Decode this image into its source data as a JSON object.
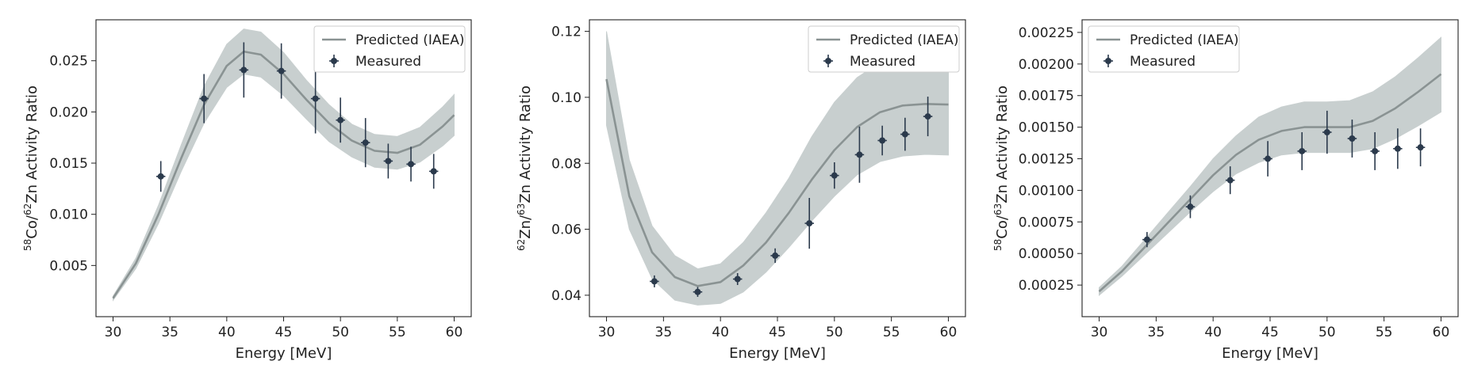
{
  "chart_data": [
    {
      "type": "line",
      "xlabel": "Energy [MeV]",
      "ylabel": {
        "parts": [
          [
            "58",
            true
          ],
          [
            "Co/",
            false
          ],
          [
            "62",
            true
          ],
          [
            "Zn Activity Ratio",
            false
          ]
        ]
      },
      "xlim": [
        28.5,
        61.5
      ],
      "ylim": [
        0.0,
        0.029
      ],
      "xticks": [
        30,
        35,
        40,
        45,
        50,
        55,
        60
      ],
      "yticks": [
        0.005,
        0.01,
        0.015,
        0.02,
        0.025
      ],
      "ytick_decimals": 3,
      "legend_position": "top-right",
      "legend": {
        "predicted": "Predicted (IAEA)",
        "measured": "Measured"
      },
      "grid": false,
      "predicted": {
        "x": [
          30,
          32,
          34,
          36,
          38,
          40,
          41.5,
          43,
          45,
          47,
          49,
          51,
          53,
          55,
          57,
          59,
          60
        ],
        "y": [
          0.0018,
          0.0052,
          0.01,
          0.0155,
          0.0207,
          0.0245,
          0.0259,
          0.0256,
          0.0237,
          0.0212,
          0.0189,
          0.0172,
          0.0162,
          0.016,
          0.0168,
          0.0186,
          0.0197
        ],
        "lower": [
          0.0016,
          0.0047,
          0.0091,
          0.0142,
          0.0189,
          0.0224,
          0.0237,
          0.0234,
          0.0216,
          0.0193,
          0.0171,
          0.0156,
          0.0146,
          0.0144,
          0.0151,
          0.0167,
          0.0177
        ],
        "upper": [
          0.002,
          0.0057,
          0.0109,
          0.0168,
          0.0225,
          0.0266,
          0.0281,
          0.0278,
          0.0258,
          0.0231,
          0.0207,
          0.0188,
          0.0178,
          0.0176,
          0.0185,
          0.0205,
          0.0217
        ]
      },
      "measured": [
        {
          "x": 34.2,
          "y": 0.0137,
          "yerr": 0.0015,
          "xerr": 0.4
        },
        {
          "x": 38.0,
          "y": 0.0213,
          "yerr": 0.0024,
          "xerr": 0.4
        },
        {
          "x": 41.5,
          "y": 0.0241,
          "yerr": 0.0027,
          "xerr": 0.4
        },
        {
          "x": 44.8,
          "y": 0.024,
          "yerr": 0.0027,
          "xerr": 0.4
        },
        {
          "x": 47.8,
          "y": 0.0213,
          "yerr": 0.0034,
          "xerr": 0.4
        },
        {
          "x": 50.0,
          "y": 0.0192,
          "yerr": 0.0022,
          "xerr": 0.4
        },
        {
          "x": 52.2,
          "y": 0.017,
          "yerr": 0.0024,
          "xerr": 0.4
        },
        {
          "x": 54.2,
          "y": 0.0152,
          "yerr": 0.0017,
          "xerr": 0.4
        },
        {
          "x": 56.2,
          "y": 0.0149,
          "yerr": 0.0017,
          "xerr": 0.4
        },
        {
          "x": 58.2,
          "y": 0.0142,
          "yerr": 0.0017,
          "xerr": 0.4
        }
      ]
    },
    {
      "type": "line",
      "xlabel": "Energy [MeV]",
      "ylabel": {
        "parts": [
          [
            "62",
            true
          ],
          [
            "Zn/",
            false
          ],
          [
            "63",
            true
          ],
          [
            "Zn Activity Ratio",
            false
          ]
        ]
      },
      "xlim": [
        28.5,
        61.5
      ],
      "ylim": [
        0.0335,
        0.1235
      ],
      "xticks": [
        30,
        35,
        40,
        45,
        50,
        55,
        60
      ],
      "yticks": [
        0.04,
        0.06,
        0.08,
        0.1,
        0.12
      ],
      "ytick_decimals": 2,
      "legend_position": "top-right",
      "legend": {
        "predicted": "Predicted (IAEA)",
        "measured": "Measured"
      },
      "grid": false,
      "predicted": {
        "x": [
          30,
          32,
          34,
          36,
          38,
          40,
          42,
          44,
          46,
          48,
          50,
          52,
          54,
          56,
          58,
          60
        ],
        "y": [
          0.1055,
          0.07,
          0.053,
          0.0455,
          0.0428,
          0.044,
          0.049,
          0.056,
          0.065,
          0.075,
          0.084,
          0.091,
          0.0955,
          0.0975,
          0.098,
          0.0978
        ],
        "lower": [
          0.0915,
          0.06,
          0.045,
          0.0385,
          0.037,
          0.0375,
          0.041,
          0.047,
          0.0545,
          0.0625,
          0.07,
          0.0765,
          0.0805,
          0.0822,
          0.0827,
          0.0825
        ],
        "upper": [
          0.12,
          0.081,
          0.061,
          0.052,
          0.048,
          0.0495,
          0.056,
          0.065,
          0.0755,
          0.088,
          0.0985,
          0.106,
          0.1105,
          0.1125,
          0.1133,
          0.1132
        ]
      },
      "measured": [
        {
          "x": 34.2,
          "y": 0.0442,
          "yerr": 0.0018,
          "xerr": 0.4
        },
        {
          "x": 38.0,
          "y": 0.041,
          "yerr": 0.0015,
          "xerr": 0.4
        },
        {
          "x": 41.5,
          "y": 0.0449,
          "yerr": 0.0018,
          "xerr": 0.4
        },
        {
          "x": 44.8,
          "y": 0.052,
          "yerr": 0.0022,
          "xerr": 0.4
        },
        {
          "x": 47.8,
          "y": 0.0618,
          "yerr": 0.0077,
          "xerr": 0.4
        },
        {
          "x": 50.0,
          "y": 0.0763,
          "yerr": 0.004,
          "xerr": 0.4
        },
        {
          "x": 52.2,
          "y": 0.0826,
          "yerr": 0.0085,
          "xerr": 0.4
        },
        {
          "x": 54.2,
          "y": 0.0869,
          "yerr": 0.0045,
          "xerr": 0.4
        },
        {
          "x": 56.2,
          "y": 0.0888,
          "yerr": 0.005,
          "xerr": 0.4
        },
        {
          "x": 58.2,
          "y": 0.0942,
          "yerr": 0.006,
          "xerr": 0.4
        }
      ]
    },
    {
      "type": "line",
      "xlabel": "Energy [MeV]",
      "ylabel": {
        "parts": [
          [
            "58",
            true
          ],
          [
            "Co/",
            false
          ],
          [
            "63",
            true
          ],
          [
            "Zn Activity Ratio",
            false
          ]
        ]
      },
      "xlim": [
        28.5,
        61.5
      ],
      "ylim": [
        0.0,
        0.00235
      ],
      "xticks": [
        30,
        35,
        40,
        45,
        50,
        55,
        60
      ],
      "yticks": [
        0.00025,
        0.0005,
        0.00075,
        0.001,
        0.00125,
        0.0015,
        0.00175,
        0.002,
        0.00225
      ],
      "ytick_decimals": 5,
      "legend_position": "top-left",
      "legend": {
        "predicted": "Predicted (IAEA)",
        "measured": "Measured"
      },
      "grid": false,
      "predicted": {
        "x": [
          30,
          32,
          34,
          36,
          38,
          40,
          42,
          44,
          46,
          48,
          50,
          52,
          54,
          56,
          58,
          60
        ],
        "y": [
          0.0002,
          0.00036,
          0.00055,
          0.00074,
          0.00093,
          0.00112,
          0.00128,
          0.0014,
          0.00147,
          0.0015,
          0.0015,
          0.0015,
          0.00155,
          0.00165,
          0.00178,
          0.00192
        ],
        "lower": [
          0.00017,
          0.00032,
          0.00049,
          0.00066,
          0.00083,
          0.00099,
          0.00113,
          0.00122,
          0.00128,
          0.0013,
          0.0013,
          0.0013,
          0.00133,
          0.00141,
          0.00151,
          0.00162
        ],
        "upper": [
          0.00023,
          0.0004,
          0.00061,
          0.00082,
          0.00103,
          0.00125,
          0.00143,
          0.00158,
          0.00166,
          0.0017,
          0.0017,
          0.00171,
          0.00178,
          0.0019,
          0.00205,
          0.00221
        ]
      },
      "measured": [
        {
          "x": 34.2,
          "y": 0.00061,
          "yerr": 6e-05,
          "xerr": 0.4
        },
        {
          "x": 38.0,
          "y": 0.00087,
          "yerr": 9e-05,
          "xerr": 0.4
        },
        {
          "x": 41.5,
          "y": 0.00108,
          "yerr": 0.00011,
          "xerr": 0.4
        },
        {
          "x": 44.8,
          "y": 0.00125,
          "yerr": 0.00014,
          "xerr": 0.4
        },
        {
          "x": 47.8,
          "y": 0.00131,
          "yerr": 0.00015,
          "xerr": 0.4
        },
        {
          "x": 50.0,
          "y": 0.00146,
          "yerr": 0.00017,
          "xerr": 0.4
        },
        {
          "x": 52.2,
          "y": 0.00141,
          "yerr": 0.00015,
          "xerr": 0.4
        },
        {
          "x": 54.2,
          "y": 0.00131,
          "yerr": 0.00015,
          "xerr": 0.4
        },
        {
          "x": 56.2,
          "y": 0.00133,
          "yerr": 0.00016,
          "xerr": 0.4
        },
        {
          "x": 58.2,
          "y": 0.00134,
          "yerr": 0.00015,
          "xerr": 0.4
        }
      ]
    }
  ],
  "colors": {
    "predicted_line": "#8a9393",
    "band": "#c8cfcf",
    "measured": "#2b3a4c"
  }
}
